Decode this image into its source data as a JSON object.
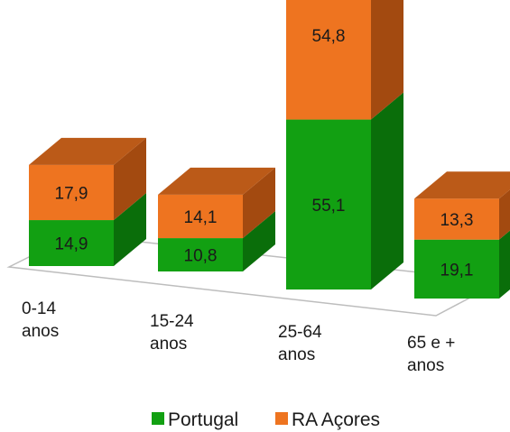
{
  "chart_data": {
    "type": "bar",
    "stacked": true,
    "three_d": true,
    "title": "",
    "xlabel": "",
    "ylabel": "",
    "categories": [
      "0-14 anos",
      "15-24 anos",
      "25-64 anos",
      "65 e + anos"
    ],
    "category_lines": [
      [
        "0-14",
        "anos"
      ],
      [
        "15-24",
        "anos"
      ],
      [
        "25-64",
        "anos"
      ],
      [
        "65 e +",
        "anos"
      ]
    ],
    "series": [
      {
        "name": "Portugal",
        "values": [
          14.9,
          10.8,
          55.1,
          19.1
        ],
        "labels": [
          "14,9",
          "10,8",
          "55,1",
          "19,1"
        ],
        "color": "#12a012",
        "side_color": "#0a6e0a",
        "top_color": "#3cc03c"
      },
      {
        "name": "RA Açores",
        "values": [
          17.9,
          14.1,
          54.8,
          13.3
        ],
        "labels": [
          "17,9",
          "14,1",
          "54,8",
          "13,3"
        ],
        "color": "#ee7420",
        "side_color": "#a34a10",
        "top_color": "#bb5a18"
      }
    ],
    "legend_position": "bottom",
    "gridlines": false
  }
}
